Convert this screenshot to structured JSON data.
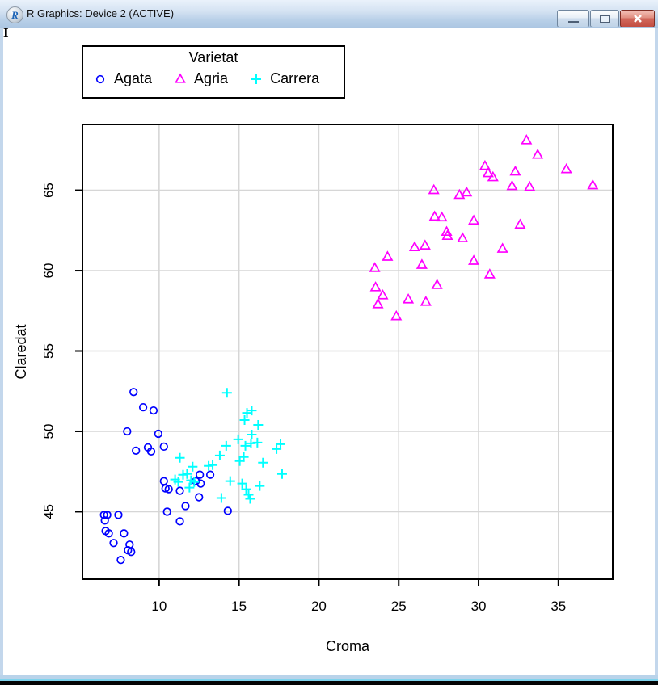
{
  "window": {
    "title": "R Graphics: Device 2 (ACTIVE)",
    "icon": "R",
    "controls": {
      "minimize": "minimize-icon",
      "restore": "restore-icon",
      "close": "close-icon"
    },
    "stray_mark": "I"
  },
  "chart_data": {
    "type": "scatter",
    "title": "",
    "xlabel": "Croma",
    "ylabel": "Claredat",
    "x_ticks": [
      10,
      15,
      20,
      25,
      30,
      35
    ],
    "y_ticks": [
      45,
      50,
      55,
      60,
      65
    ],
    "xlim": [
      5.2,
      38.4
    ],
    "ylim": [
      40.8,
      69.1
    ],
    "grid": true,
    "grid_color": "#d6d6d6",
    "axis_color": "#000000",
    "legend": {
      "title": "Varietat",
      "position": "top-left"
    },
    "series": [
      {
        "name": "Agata",
        "marker": "circle",
        "color": "#0000FF",
        "points": [
          [
            8.4,
            52.45
          ],
          [
            9.0,
            51.5
          ],
          [
            9.65,
            51.3
          ],
          [
            8.0,
            50.0
          ],
          [
            9.95,
            49.85
          ],
          [
            8.55,
            48.8
          ],
          [
            9.3,
            49.0
          ],
          [
            9.5,
            48.75
          ],
          [
            10.3,
            49.05
          ],
          [
            10.3,
            46.9
          ],
          [
            10.4,
            46.45
          ],
          [
            10.6,
            46.4
          ],
          [
            11.3,
            46.3
          ],
          [
            12.55,
            47.3
          ],
          [
            13.2,
            47.3
          ],
          [
            12.3,
            46.9
          ],
          [
            12.6,
            46.75
          ],
          [
            12.5,
            45.9
          ],
          [
            11.65,
            45.35
          ],
          [
            10.5,
            45.0
          ],
          [
            11.3,
            44.4
          ],
          [
            14.3,
            45.05
          ],
          [
            6.55,
            44.8
          ],
          [
            6.75,
            44.8
          ],
          [
            7.45,
            44.8
          ],
          [
            6.6,
            44.45
          ],
          [
            6.65,
            43.8
          ],
          [
            6.85,
            43.65
          ],
          [
            7.8,
            43.65
          ],
          [
            7.15,
            43.05
          ],
          [
            8.15,
            42.95
          ],
          [
            8.05,
            42.6
          ],
          [
            8.25,
            42.5
          ],
          [
            7.6,
            42.0
          ]
        ]
      },
      {
        "name": "Agria",
        "marker": "triangle",
        "color": "#FF00FF",
        "points": [
          [
            33.0,
            68.1
          ],
          [
            33.7,
            67.2
          ],
          [
            35.5,
            66.3
          ],
          [
            30.4,
            66.5
          ],
          [
            30.6,
            66.05
          ],
          [
            30.9,
            65.8
          ],
          [
            32.3,
            66.15
          ],
          [
            32.1,
            65.25
          ],
          [
            33.2,
            65.2
          ],
          [
            37.15,
            65.3
          ],
          [
            27.2,
            65.0
          ],
          [
            28.8,
            64.7
          ],
          [
            29.25,
            64.85
          ],
          [
            27.25,
            63.35
          ],
          [
            27.7,
            63.3
          ],
          [
            29.7,
            63.1
          ],
          [
            32.6,
            62.85
          ],
          [
            28.0,
            62.4
          ],
          [
            28.05,
            62.15
          ],
          [
            29.0,
            62.0
          ],
          [
            26.0,
            61.45
          ],
          [
            26.65,
            61.55
          ],
          [
            31.5,
            61.35
          ],
          [
            24.3,
            60.85
          ],
          [
            26.45,
            60.35
          ],
          [
            23.5,
            60.15
          ],
          [
            29.7,
            60.6
          ],
          [
            30.7,
            59.75
          ],
          [
            27.4,
            59.1
          ],
          [
            23.55,
            58.95
          ],
          [
            24.0,
            58.45
          ],
          [
            23.7,
            57.9
          ],
          [
            25.6,
            58.2
          ],
          [
            26.7,
            58.05
          ],
          [
            24.85,
            57.15
          ]
        ]
      },
      {
        "name": "Carrera",
        "marker": "plus",
        "color": "#00FFFF",
        "points": [
          [
            14.25,
            52.4
          ],
          [
            15.5,
            51.15
          ],
          [
            15.8,
            51.3
          ],
          [
            15.35,
            50.7
          ],
          [
            16.2,
            50.4
          ],
          [
            15.8,
            49.8
          ],
          [
            14.95,
            49.5
          ],
          [
            15.75,
            49.25
          ],
          [
            16.15,
            49.3
          ],
          [
            15.4,
            49.1
          ],
          [
            14.2,
            49.1
          ],
          [
            13.8,
            48.5
          ],
          [
            17.6,
            49.2
          ],
          [
            17.35,
            48.9
          ],
          [
            15.3,
            48.4
          ],
          [
            15.05,
            48.15
          ],
          [
            16.5,
            48.05
          ],
          [
            17.7,
            47.35
          ],
          [
            11.3,
            48.35
          ],
          [
            12.1,
            47.8
          ],
          [
            13.1,
            47.85
          ],
          [
            13.35,
            47.9
          ],
          [
            11.5,
            47.3
          ],
          [
            11.75,
            47.35
          ],
          [
            12.0,
            46.95
          ],
          [
            12.2,
            46.85
          ],
          [
            11.0,
            47.0
          ],
          [
            11.2,
            46.85
          ],
          [
            11.9,
            46.5
          ],
          [
            14.45,
            46.9
          ],
          [
            15.2,
            46.75
          ],
          [
            15.45,
            46.4
          ],
          [
            16.3,
            46.6
          ],
          [
            15.6,
            46.05
          ],
          [
            15.7,
            45.8
          ],
          [
            13.9,
            45.85
          ]
        ]
      }
    ]
  }
}
